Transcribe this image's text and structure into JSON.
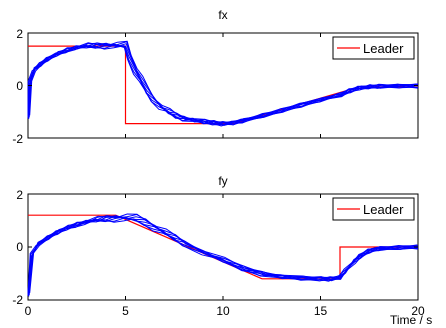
{
  "figure": {
    "xlabel": "Time / s",
    "colors": {
      "leader": "#ff0000",
      "followers": "#0000ff",
      "axes": "#000000"
    }
  },
  "chart_data": [
    {
      "type": "line",
      "title": "fx",
      "xlim": [
        0,
        20
      ],
      "ylim": [
        -2,
        2
      ],
      "xticks": [
        "0",
        "5",
        "10",
        "15",
        "20"
      ],
      "yticks": [
        "2",
        "0",
        "-2"
      ],
      "legend": {
        "label": "Leader",
        "position": "top-right"
      },
      "series": [
        {
          "name": "Leader",
          "color": "#ff0000",
          "x": [
            0,
            5,
            5,
            10.5,
            17,
            20
          ],
          "y": [
            1.5,
            1.5,
            -1.45,
            -1.45,
            -0.05,
            -0.05
          ]
        }
      ],
      "followers": {
        "color": "#0000ff",
        "count": 8,
        "x": [
          0,
          0.1,
          0.3,
          0.6,
          1.0,
          1.5,
          2.0,
          2.5,
          3.0,
          3.5,
          4.0,
          4.5,
          5.0,
          5.2,
          5.5,
          5.8,
          6.1,
          6.4,
          6.8,
          7.2,
          7.6,
          8.0,
          8.5,
          9.0,
          9.5,
          10.0,
          10.5,
          11.0,
          12.0,
          13.0,
          14.0,
          15.0,
          16.0,
          16.5,
          17.0,
          17.5,
          18.0,
          19.0,
          20.0
        ],
        "y": [
          -1.2,
          0.1,
          0.6,
          0.8,
          1.0,
          1.2,
          1.35,
          1.45,
          1.5,
          1.52,
          1.53,
          1.53,
          1.53,
          1.1,
          0.6,
          0.2,
          -0.2,
          -0.5,
          -0.8,
          -1.0,
          -1.15,
          -1.25,
          -1.32,
          -1.38,
          -1.42,
          -1.45,
          -1.43,
          -1.35,
          -1.15,
          -0.95,
          -0.75,
          -0.55,
          -0.35,
          -0.2,
          -0.1,
          -0.05,
          -0.03,
          -0.02,
          -0.02
        ]
      }
    },
    {
      "type": "line",
      "title": "fy",
      "xlim": [
        0,
        20
      ],
      "ylim": [
        -2,
        2
      ],
      "xticks": [
        "0",
        "5",
        "10",
        "15",
        "20"
      ],
      "yticks": [
        "2",
        "0",
        "-2"
      ],
      "legend": {
        "label": "Leader",
        "position": "top-right"
      },
      "series": [
        {
          "name": "Leader",
          "color": "#ff0000",
          "x": [
            0,
            4.5,
            12,
            16,
            16,
            20
          ],
          "y": [
            1.2,
            1.2,
            -1.2,
            -1.2,
            0,
            0
          ]
        }
      ],
      "followers": {
        "color": "#0000ff",
        "count": 8,
        "x": [
          0,
          0.2,
          0.5,
          1.0,
          1.5,
          2.0,
          2.5,
          3.0,
          3.5,
          4.0,
          4.5,
          5.0,
          5.5,
          6.0,
          6.5,
          7.0,
          7.5,
          8.0,
          9.0,
          10.0,
          11.0,
          12.0,
          13.0,
          14.0,
          15.0,
          15.5,
          16.0,
          16.3,
          16.7,
          17.0,
          17.5,
          18.0,
          19.0,
          20.0
        ],
        "y": [
          -1.8,
          -0.3,
          0.1,
          0.35,
          0.55,
          0.72,
          0.85,
          0.95,
          1.02,
          1.07,
          1.1,
          1.1,
          1.08,
          0.95,
          0.75,
          0.55,
          0.35,
          0.15,
          -0.2,
          -0.5,
          -0.8,
          -1.0,
          -1.12,
          -1.18,
          -1.2,
          -1.2,
          -1.15,
          -0.9,
          -0.55,
          -0.35,
          -0.15,
          -0.06,
          -0.02,
          0.0
        ]
      }
    }
  ]
}
